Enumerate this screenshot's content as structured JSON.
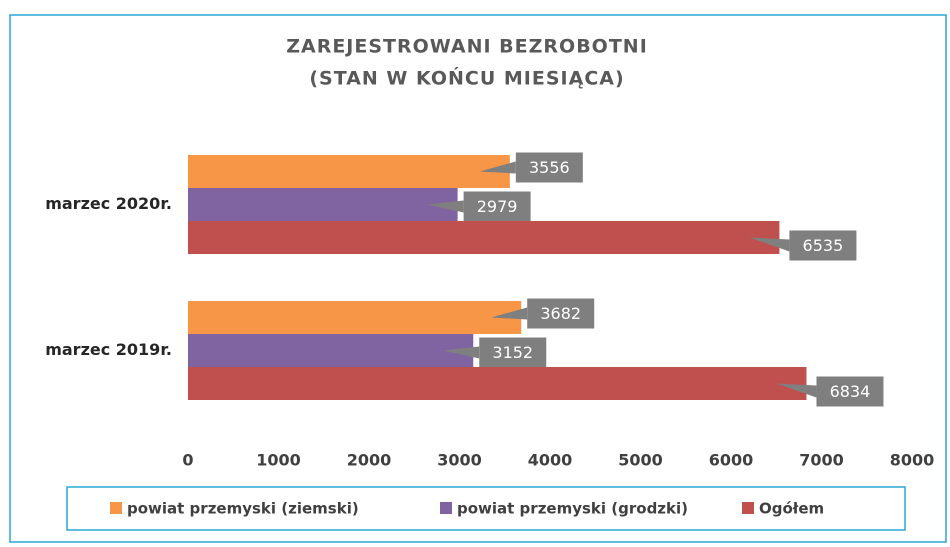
{
  "chart_data": {
    "type": "bar",
    "orientation": "horizontal",
    "title": [
      "ZAREJESTROWANI BEZROBOTNI",
      "(STAN W KOŃCU MIESIĄCA)"
    ],
    "categories": [
      "marzec 2020r.",
      "marzec 2019r."
    ],
    "series": [
      {
        "name": "powiat przemyski (ziemski)",
        "color": "#f79646",
        "values": [
          3556,
          3682
        ]
      },
      {
        "name": "powiat przemyski (grodzki)",
        "color": "#8064a2",
        "values": [
          2979,
          3152
        ]
      },
      {
        "name": "Ogółem",
        "color": "#c0504d",
        "values": [
          6535,
          6834
        ]
      }
    ],
    "xlim": [
      0,
      8000
    ],
    "xticks": [
      0,
      1000,
      2000,
      3000,
      4000,
      5000,
      6000,
      7000,
      8000
    ],
    "legend": "bottom"
  }
}
